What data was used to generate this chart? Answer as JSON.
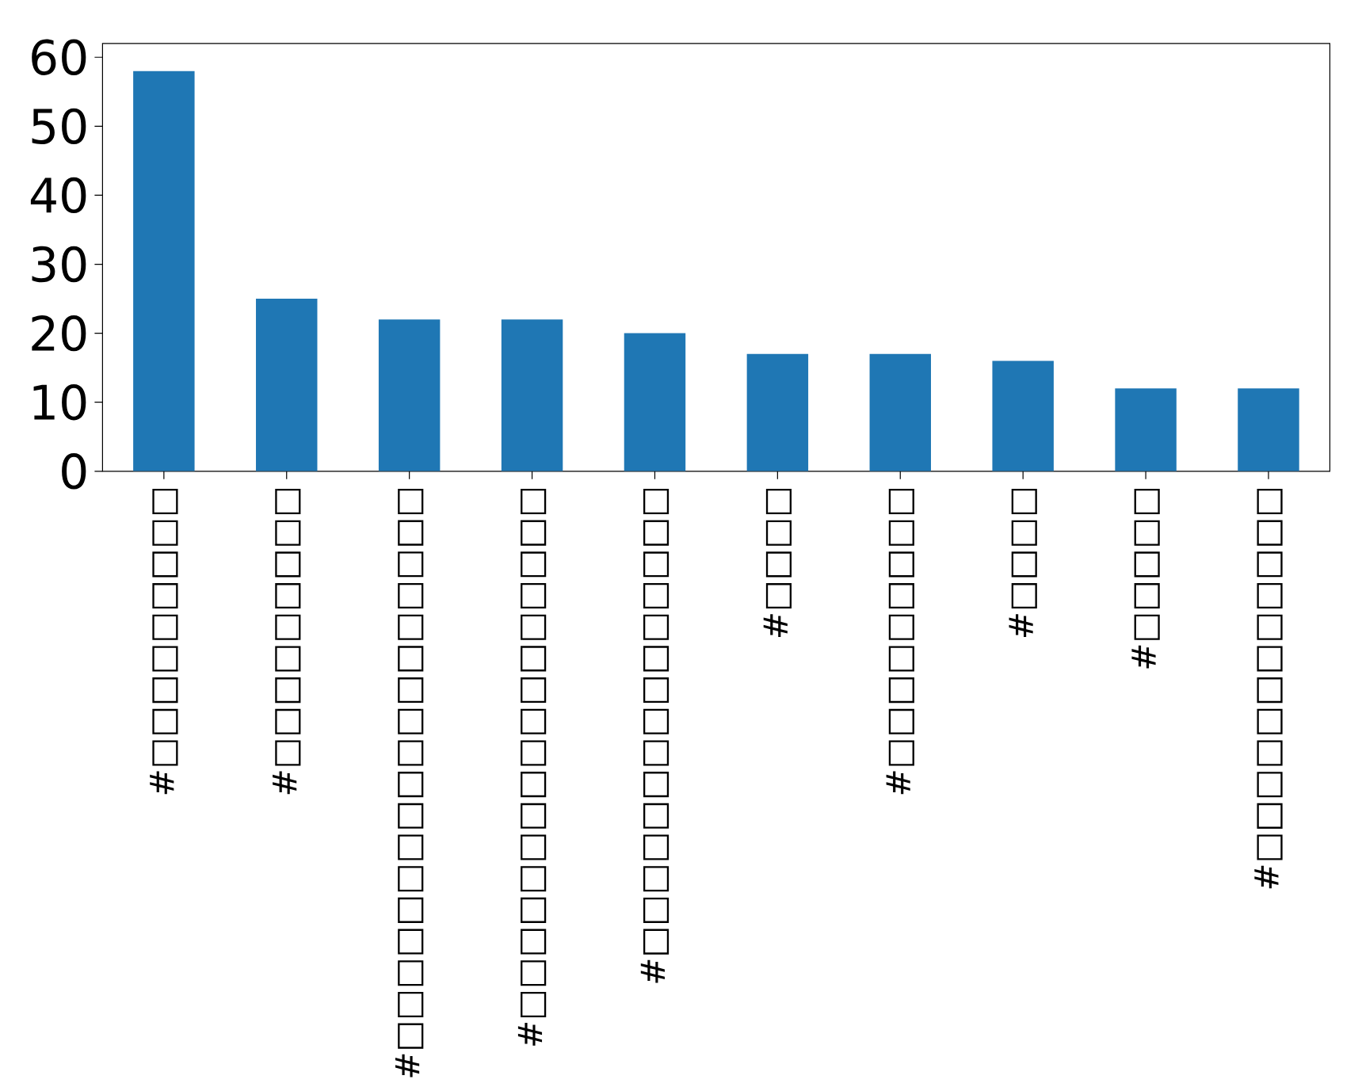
{
  "chart_data": {
    "type": "bar",
    "categories": [
      "#□□□□□□□□□",
      "#□□□□□□□□□",
      "#□□□□□□□□□□□□□□□□□□",
      "#□□□□□□□□□□□□□□□□□",
      "#□□□□□□□□□□□□□□□",
      "#□□□□",
      "#□□□□□□□□□",
      "#□□□□",
      "#□□□□□",
      "#□□□□□□□□□□□□"
    ],
    "values": [
      58,
      25,
      22,
      22,
      20,
      17,
      17,
      16,
      12,
      12
    ],
    "color": "#1f77b4",
    "ylim": [
      0,
      62
    ],
    "yticks": [
      0,
      10,
      20,
      30,
      40,
      50,
      60
    ],
    "grid": false
  }
}
